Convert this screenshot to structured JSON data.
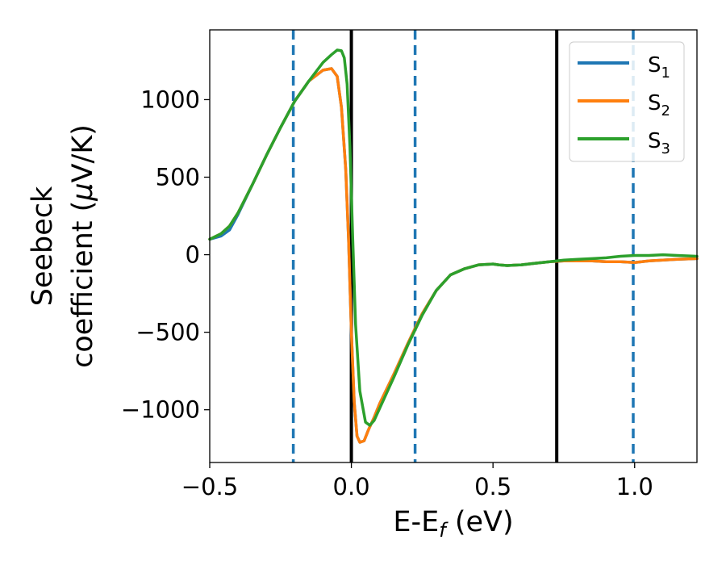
{
  "chart_data": {
    "type": "line",
    "xlabel": {
      "main": "E-E",
      "sub": "f",
      "suffix": " (eV)"
    },
    "ylabel": {
      "line1": "Seebeck",
      "line2": "coefficient  (",
      "mu": "μ",
      "line2_end": "V/K)"
    },
    "xlim": [
      -0.5,
      1.22
    ],
    "ylim": [
      -1340,
      1450
    ],
    "x_ticks": [
      {
        "value": -0.5,
        "label": "−0.5"
      },
      {
        "value": 0.0,
        "label": "0.0"
      },
      {
        "value": 0.5,
        "label": "0.5"
      },
      {
        "value": 1.0,
        "label": "1.0"
      }
    ],
    "y_ticks": [
      {
        "value": 1000,
        "label": "1000"
      },
      {
        "value": 500,
        "label": "500"
      },
      {
        "value": 0,
        "label": "0"
      },
      {
        "value": -500,
        "label": "−500"
      },
      {
        "value": -1000,
        "label": "−1000"
      }
    ],
    "vertical_lines": [
      {
        "x": -0.205,
        "style": "dashed",
        "color": "#1f77b4"
      },
      {
        "x": 0.0,
        "style": "solid",
        "color": "#000000"
      },
      {
        "x": 0.225,
        "style": "dashed",
        "color": "#1f77b4"
      },
      {
        "x": 0.725,
        "style": "solid",
        "color": "#000000"
      },
      {
        "x": 0.995,
        "style": "dashed",
        "color": "#1f77b4"
      }
    ],
    "legend_position": "top-right",
    "series": [
      {
        "name": "S",
        "sub": "1",
        "color": "#1f77b4",
        "x": [
          -0.5,
          -0.46,
          -0.43,
          -0.4,
          -0.35,
          -0.3,
          -0.25,
          -0.2,
          -0.15,
          -0.1,
          -0.07,
          -0.05,
          -0.035,
          -0.02,
          -0.01,
          0.0,
          0.01,
          0.02,
          0.03,
          0.045,
          0.06,
          0.08,
          0.1,
          0.15,
          0.2,
          0.25,
          0.3,
          0.35,
          0.4,
          0.45,
          0.5,
          0.52,
          0.55,
          0.6,
          0.65,
          0.7,
          0.75,
          0.8,
          0.85,
          0.9,
          0.95,
          1.0,
          1.05,
          1.1,
          1.15,
          1.22
        ],
        "y": [
          100,
          120,
          160,
          260,
          450,
          640,
          820,
          990,
          1120,
          1190,
          1200,
          1150,
          950,
          550,
          100,
          -500,
          -950,
          -1170,
          -1210,
          -1200,
          -1130,
          -1050,
          -960,
          -770,
          -570,
          -380,
          -230,
          -130,
          -90,
          -65,
          -60,
          -65,
          -70,
          -65,
          -55,
          -45,
          -40,
          -40,
          -40,
          -45,
          -45,
          -50,
          -40,
          -35,
          -30,
          -25
        ]
      },
      {
        "name": "S",
        "sub": "2",
        "color": "#ff7f0e",
        "x": [
          -0.5,
          -0.46,
          -0.43,
          -0.4,
          -0.35,
          -0.3,
          -0.25,
          -0.2,
          -0.15,
          -0.1,
          -0.07,
          -0.05,
          -0.035,
          -0.02,
          -0.01,
          0.0,
          0.01,
          0.02,
          0.03,
          0.045,
          0.06,
          0.08,
          0.1,
          0.15,
          0.2,
          0.25,
          0.3,
          0.35,
          0.4,
          0.45,
          0.5,
          0.52,
          0.55,
          0.6,
          0.65,
          0.7,
          0.75,
          0.8,
          0.85,
          0.9,
          0.95,
          1.0,
          1.05,
          1.1,
          1.15,
          1.22
        ],
        "y": [
          100,
          135,
          185,
          270,
          450,
          640,
          820,
          990,
          1120,
          1190,
          1200,
          1150,
          950,
          550,
          100,
          -500,
          -950,
          -1170,
          -1210,
          -1200,
          -1130,
          -1050,
          -960,
          -770,
          -570,
          -380,
          -230,
          -130,
          -90,
          -65,
          -60,
          -65,
          -70,
          -65,
          -55,
          -45,
          -40,
          -40,
          -40,
          -45,
          -45,
          -50,
          -40,
          -35,
          -30,
          -25
        ]
      },
      {
        "name": "S",
        "sub": "3",
        "color": "#2ca02c",
        "x": [
          -0.5,
          -0.46,
          -0.43,
          -0.4,
          -0.35,
          -0.3,
          -0.25,
          -0.2,
          -0.15,
          -0.1,
          -0.07,
          -0.05,
          -0.035,
          -0.025,
          -0.015,
          -0.005,
          0.005,
          0.015,
          0.03,
          0.05,
          0.065,
          0.08,
          0.1,
          0.15,
          0.2,
          0.25,
          0.3,
          0.35,
          0.4,
          0.45,
          0.5,
          0.52,
          0.55,
          0.6,
          0.65,
          0.7,
          0.75,
          0.8,
          0.85,
          0.9,
          0.95,
          1.0,
          1.05,
          1.1,
          1.15,
          1.22
        ],
        "y": [
          100,
          135,
          185,
          270,
          450,
          640,
          820,
          990,
          1120,
          1240,
          1290,
          1320,
          1315,
          1270,
          1100,
          700,
          100,
          -450,
          -880,
          -1080,
          -1100,
          -1070,
          -990,
          -790,
          -580,
          -390,
          -230,
          -130,
          -90,
          -65,
          -60,
          -65,
          -70,
          -65,
          -55,
          -45,
          -35,
          -30,
          -25,
          -20,
          -10,
          -5,
          -5,
          0,
          -5,
          -10
        ]
      }
    ]
  }
}
